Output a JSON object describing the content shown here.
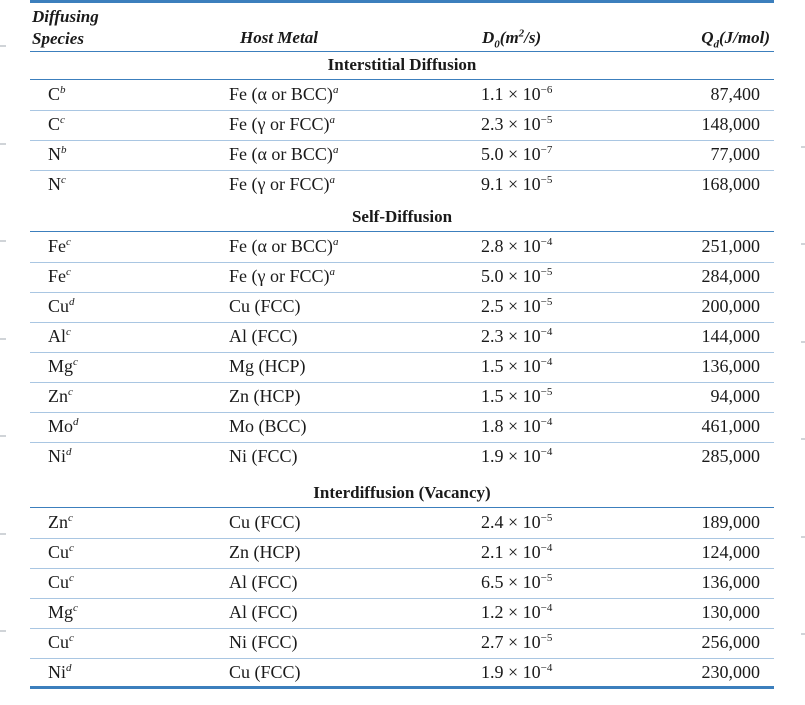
{
  "header": {
    "species_line1": "Diffusing",
    "species_line2": "Species",
    "host": "Host Metal",
    "d0_prefix": "D",
    "d0_sub": "0",
    "d0_mid": "(m",
    "d0_sup": "2",
    "d0_suffix": "/s)",
    "qd_prefix": "Q",
    "qd_sub": "d",
    "qd_suffix": "(J/mol)"
  },
  "sections": [
    {
      "title": "Interstitial Diffusion",
      "rows": [
        {
          "species": "C",
          "species_note": "b",
          "host": "Fe (α or BCC)",
          "host_note": "a",
          "d0_mantissa": "1.1",
          "d0_exp": "−6",
          "qd": "87,400"
        },
        {
          "species": "C",
          "species_note": "c",
          "host": "Fe (γ or FCC)",
          "host_note": "a",
          "d0_mantissa": "2.3",
          "d0_exp": "−5",
          "qd": "148,000"
        },
        {
          "species": "N",
          "species_note": "b",
          "host": "Fe (α or BCC)",
          "host_note": "a",
          "d0_mantissa": "5.0",
          "d0_exp": "−7",
          "qd": "77,000"
        },
        {
          "species": "N",
          "species_note": "c",
          "host": "Fe (γ or FCC)",
          "host_note": "a",
          "d0_mantissa": "9.1",
          "d0_exp": "−5",
          "qd": "168,000"
        }
      ]
    },
    {
      "title": "Self-Diffusion",
      "rows": [
        {
          "species": "Fe",
          "species_note": "c",
          "host": "Fe (α or BCC)",
          "host_note": "a",
          "d0_mantissa": "2.8",
          "d0_exp": "−4",
          "qd": "251,000"
        },
        {
          "species": "Fe",
          "species_note": "c",
          "host": "Fe (γ or FCC)",
          "host_note": "a",
          "d0_mantissa": "5.0",
          "d0_exp": "−5",
          "qd": "284,000"
        },
        {
          "species": "Cu",
          "species_note": "d",
          "host": "Cu (FCC)",
          "host_note": "",
          "d0_mantissa": "2.5",
          "d0_exp": "−5",
          "qd": "200,000"
        },
        {
          "species": "Al",
          "species_note": "c",
          "host": "Al (FCC)",
          "host_note": "",
          "d0_mantissa": "2.3",
          "d0_exp": "−4",
          "qd": "144,000"
        },
        {
          "species": "Mg",
          "species_note": "c",
          "host": "Mg (HCP)",
          "host_note": "",
          "d0_mantissa": "1.5",
          "d0_exp": "−4",
          "qd": "136,000"
        },
        {
          "species": "Zn",
          "species_note": "c",
          "host": "Zn (HCP)",
          "host_note": "",
          "d0_mantissa": "1.5",
          "d0_exp": "−5",
          "qd": "94,000"
        },
        {
          "species": "Mo",
          "species_note": "d",
          "host": "Mo (BCC)",
          "host_note": "",
          "d0_mantissa": "1.8",
          "d0_exp": "−4",
          "qd": "461,000"
        },
        {
          "species": "Ni",
          "species_note": "d",
          "host": "Ni (FCC)",
          "host_note": "",
          "d0_mantissa": "1.9",
          "d0_exp": "−4",
          "qd": "285,000"
        }
      ]
    },
    {
      "title": "Interdiffusion (Vacancy)",
      "rows": [
        {
          "species": "Zn",
          "species_note": "c",
          "host": "Cu (FCC)",
          "host_note": "",
          "d0_mantissa": "2.4",
          "d0_exp": "−5",
          "qd": "189,000"
        },
        {
          "species": "Cu",
          "species_note": "c",
          "host": "Zn (HCP)",
          "host_note": "",
          "d0_mantissa": "2.1",
          "d0_exp": "−4",
          "qd": "124,000"
        },
        {
          "species": "Cu",
          "species_note": "c",
          "host": "Al (FCC)",
          "host_note": "",
          "d0_mantissa": "6.5",
          "d0_exp": "−5",
          "qd": "136,000"
        },
        {
          "species": "Mg",
          "species_note": "c",
          "host": "Al (FCC)",
          "host_note": "",
          "d0_mantissa": "1.2",
          "d0_exp": "−4",
          "qd": "130,000"
        },
        {
          "species": "Cu",
          "species_note": "c",
          "host": "Ni (FCC)",
          "host_note": "",
          "d0_mantissa": "2.7",
          "d0_exp": "−5",
          "qd": "256,000"
        },
        {
          "species": "Ni",
          "species_note": "d",
          "host": "Cu (FCC)",
          "host_note": "",
          "d0_mantissa": "1.9",
          "d0_exp": "−4",
          "qd": "230,000"
        }
      ]
    }
  ],
  "times_symbol": "×",
  "ten": "10",
  "colors": {
    "rule": "#3c7fbd",
    "divider": "#a9c6e2",
    "text": "#1a1a1a"
  }
}
